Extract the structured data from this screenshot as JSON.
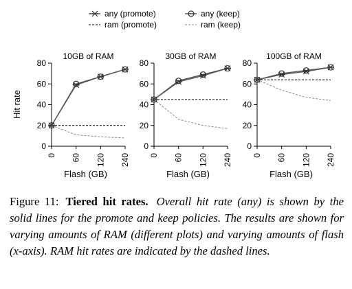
{
  "legend": [
    {
      "label": "any (promote)",
      "marker": "star"
    },
    {
      "label": "any (keep)",
      "marker": "circle"
    },
    {
      "label": "ram (promote)",
      "marker": "dash"
    },
    {
      "label": "ram (keep)",
      "marker": "dash"
    }
  ],
  "chart_data": [
    {
      "type": "line",
      "title": "10GB of RAM",
      "xlabel": "Flash (GB)",
      "ylabel": "Hit rate",
      "x": [
        "0",
        "60",
        "120",
        "240"
      ],
      "ylim": [
        0,
        80
      ],
      "yticks": [
        "0",
        "20",
        "40",
        "60",
        "80"
      ],
      "series": [
        {
          "name": "any (promote)",
          "style": "solid-star",
          "values": [
            20,
            59,
            67,
            74
          ]
        },
        {
          "name": "any (keep)",
          "style": "solid-circle",
          "values": [
            20,
            60,
            67,
            74
          ]
        },
        {
          "name": "ram (promote)",
          "style": "dashed-black",
          "values": [
            20,
            20,
            20,
            20
          ]
        },
        {
          "name": "ram (keep)",
          "style": "dashed-gray",
          "values": [
            20,
            11,
            9,
            8
          ]
        }
      ]
    },
    {
      "type": "line",
      "title": "30GB of RAM",
      "xlabel": "Flash (GB)",
      "ylabel": "",
      "x": [
        "0",
        "60",
        "120",
        "240"
      ],
      "ylim": [
        0,
        80
      ],
      "yticks": [
        "0",
        "20",
        "40",
        "60",
        "80"
      ],
      "series": [
        {
          "name": "any (promote)",
          "style": "solid-star",
          "values": [
            45,
            62,
            68,
            75
          ]
        },
        {
          "name": "any (keep)",
          "style": "solid-circle",
          "values": [
            45,
            63,
            69,
            75
          ]
        },
        {
          "name": "ram (promote)",
          "style": "dashed-black",
          "values": [
            45,
            45,
            45,
            45
          ]
        },
        {
          "name": "ram (keep)",
          "style": "dashed-gray",
          "values": [
            45,
            26,
            20,
            17
          ]
        }
      ]
    },
    {
      "type": "line",
      "title": "100GB of RAM",
      "xlabel": "Flash (GB)",
      "ylabel": "",
      "x": [
        "0",
        "60",
        "120",
        "240"
      ],
      "ylim": [
        0,
        80
      ],
      "yticks": [
        "0",
        "20",
        "40",
        "60",
        "80"
      ],
      "series": [
        {
          "name": "any (promote)",
          "style": "solid-star",
          "values": [
            64,
            69,
            72,
            76
          ]
        },
        {
          "name": "any (keep)",
          "style": "solid-circle",
          "values": [
            64,
            70,
            73,
            76
          ]
        },
        {
          "name": "ram (promote)",
          "style": "dashed-black",
          "values": [
            64,
            64,
            64,
            64
          ]
        },
        {
          "name": "ram (keep)",
          "style": "dashed-gray",
          "values": [
            64,
            54,
            47,
            44
          ]
        }
      ]
    }
  ],
  "caption": {
    "label": "Figure 11:",
    "title": "Tiered hit rates.",
    "text": "Overall hit rate (any) is shown by the solid lines for the promote and keep policies. The results are shown for varying amounts of RAM (different plots) and varying amounts of flash (x-axis). RAM hit rates are indicated by the dashed lines."
  },
  "colors": {
    "solid": "#555555",
    "dashed_black": "#000000",
    "dashed_gray": "#888888"
  }
}
